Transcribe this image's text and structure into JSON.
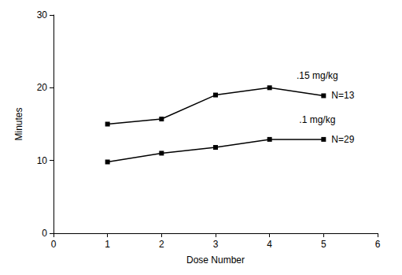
{
  "chart_data": {
    "type": "line",
    "x_label": "Dose Number",
    "y_label": "Minutes",
    "x": [
      1,
      2,
      3,
      4,
      5
    ],
    "series": [
      {
        "name": ".15 mg/kg",
        "note": "N=13",
        "color": "#000000",
        "marker": "square",
        "line_style": "solid",
        "values": [
          15,
          15.7,
          19,
          20,
          18.9
        ]
      },
      {
        "name": ".1 mg/kg",
        "note": "N=29",
        "color": "#000000",
        "marker": "square",
        "line_style": "solid",
        "values": [
          9.8,
          11,
          11.8,
          12.9,
          12.9
        ]
      }
    ],
    "xlim": [
      0,
      6
    ],
    "xticks": [
      0,
      1,
      2,
      3,
      4,
      5,
      6
    ],
    "ylim": [
      0,
      30
    ],
    "yticks": [
      0,
      10,
      20,
      30
    ],
    "grid": false
  }
}
